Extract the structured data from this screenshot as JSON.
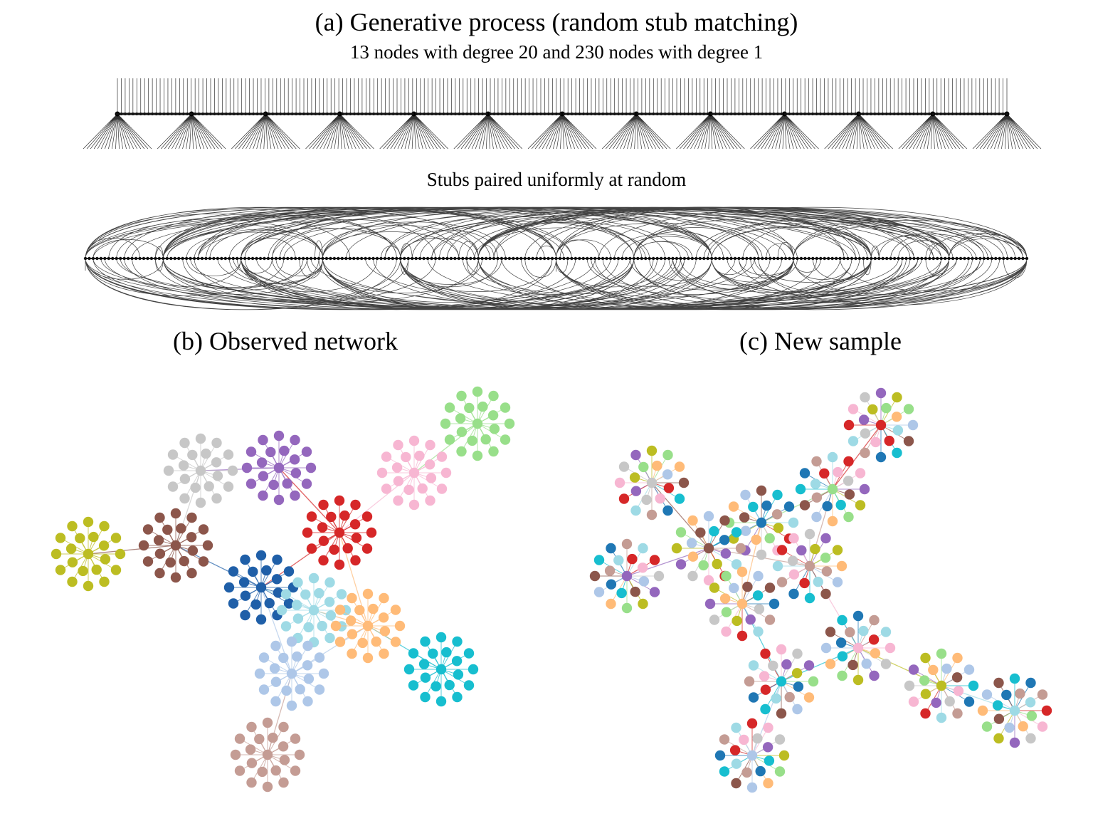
{
  "panel_a": {
    "title": "(a) Generative process (random stub matching)",
    "subtitle": "13 nodes with degree 20 and 230 nodes with degree 1",
    "stubs_label": "Stubs paired uniformly at random",
    "hub_count": 13,
    "hub_degree": 20,
    "leaf_count": 230,
    "leaf_degree": 1
  },
  "panel_b": {
    "title": "(b) Observed network",
    "colors": [
      "#bcbd22",
      "#8c564b",
      "#c7c7c7",
      "#9467bd",
      "#d62728",
      "#1f5fa8",
      "#9edae5",
      "#f7b6d2",
      "#98df8a",
      "#ffbb78",
      "#aec7e8",
      "#17becf",
      "#c49c94"
    ]
  },
  "panel_c": {
    "title": "(c) New sample",
    "colors": [
      "#c7c7c7",
      "#1f77b4",
      "#98df8a",
      "#d62728",
      "#8c564b",
      "#9467bd",
      "#c49c94",
      "#ffbb78",
      "#f7b6d2",
      "#17becf",
      "#bcbd22",
      "#9edae5",
      "#aec7e8"
    ]
  }
}
